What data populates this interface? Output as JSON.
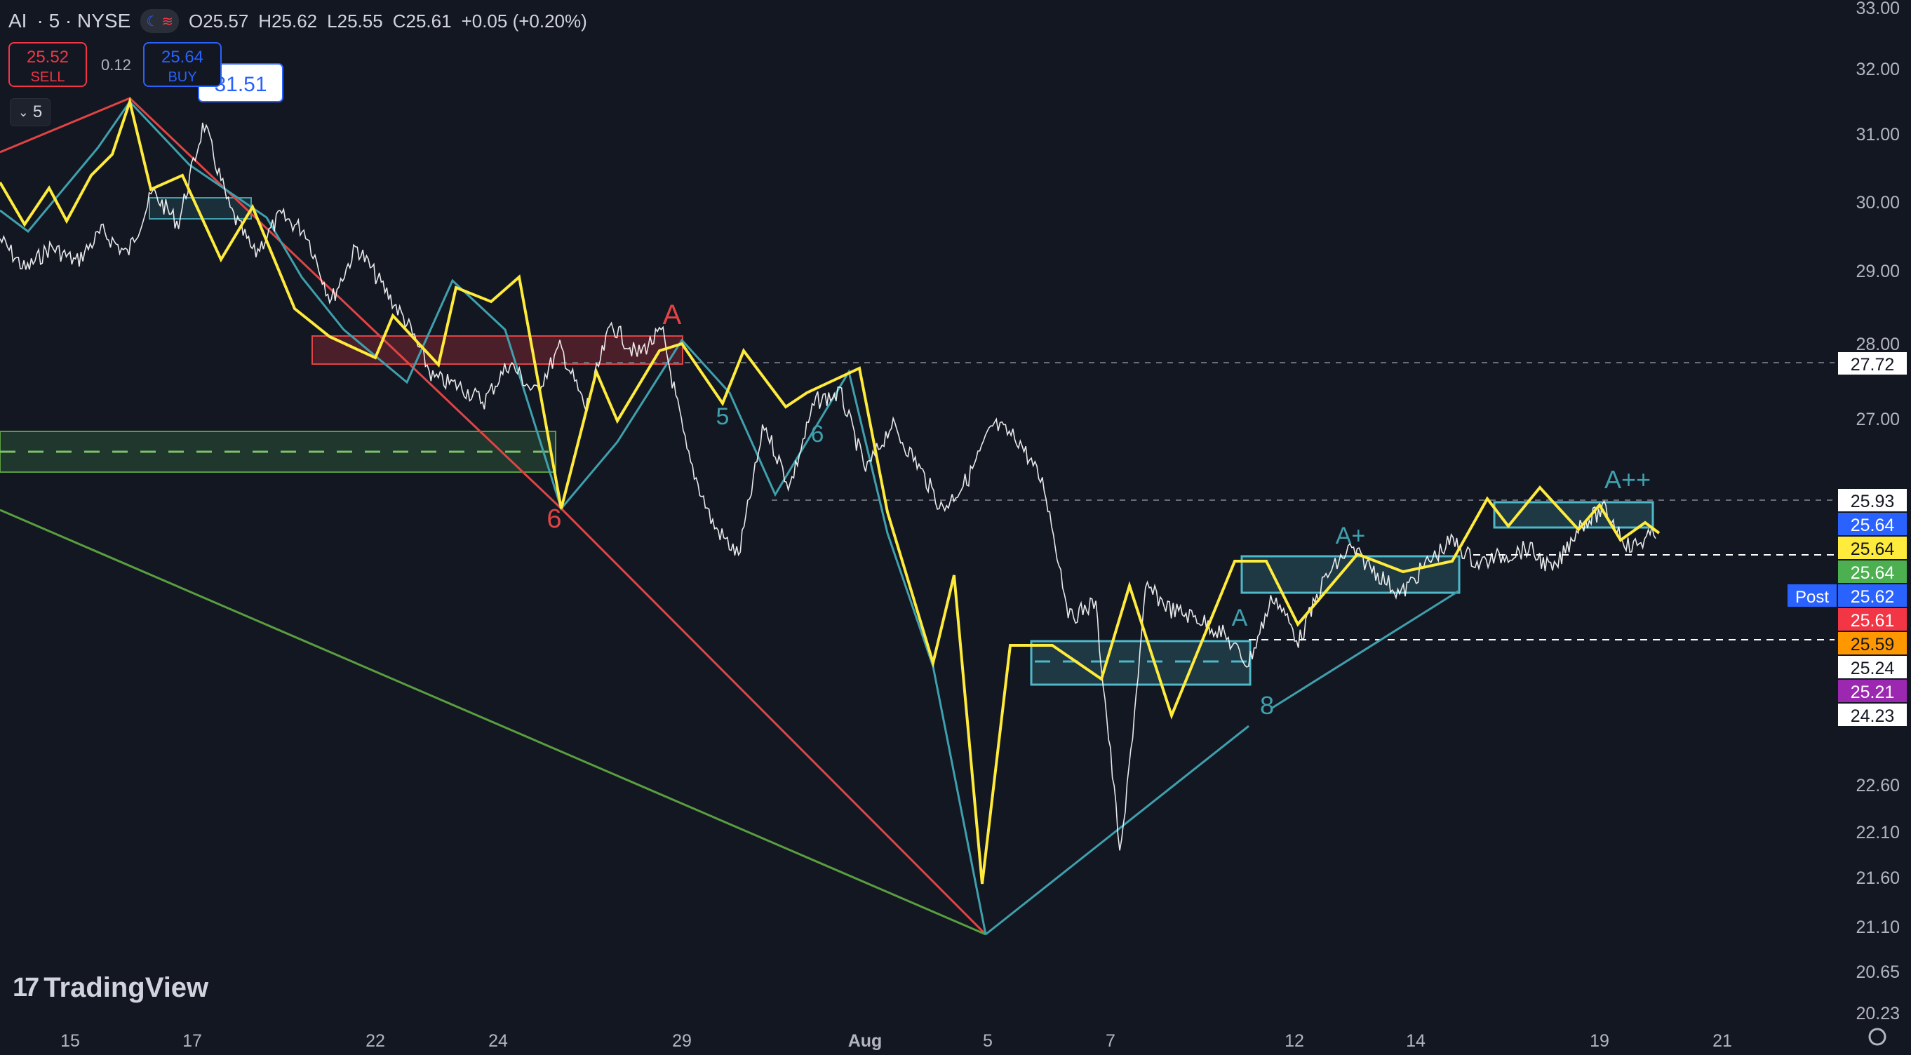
{
  "header": {
    "symbol": "AI",
    "interval": "· 5 · NYSE",
    "ohlc": {
      "open_label": "O",
      "open": "25.57",
      "high_label": "H",
      "high": "25.62",
      "low_label": "L",
      "low": "25.55",
      "close_label": "C",
      "close": "25.61",
      "change": "+0.05 (+0.20%)"
    }
  },
  "trade": {
    "sell_price": "25.52",
    "sell_label": "SELL",
    "spread": "0.12",
    "buy_price": "25.64",
    "buy_label": "BUY"
  },
  "interval_button": {
    "label": "5"
  },
  "logo": {
    "text": "TradingView"
  },
  "colors": {
    "background": "#131722",
    "yellow": "#ffeb3b",
    "teal": "#3fa0ad",
    "red": "#e04444",
    "green": "#5a9e3f",
    "text": "#b2b5be"
  },
  "chart_data": {
    "type": "line",
    "title": "",
    "xlabel": "",
    "ylabel": "",
    "ylim": [
      20.0,
      33.0
    ],
    "grid": false,
    "y_ticks": [
      "33.00",
      "32.00",
      "31.00",
      "30.00",
      "29.00",
      "28.00",
      "27.00",
      "22.60",
      "22.10",
      "21.60",
      "21.10",
      "20.65",
      "20.23"
    ],
    "x_ticks": [
      "15",
      "17",
      "22",
      "24",
      "29",
      "Aug",
      "5",
      "7",
      "12",
      "14",
      "19",
      "21"
    ],
    "price_tags": [
      {
        "text": "27.72",
        "bg": "#ffffff",
        "fg": "#131722"
      },
      {
        "text": "25.93",
        "bg": "#ffffff",
        "fg": "#131722"
      },
      {
        "text": "25.64",
        "bg": "#2962ff",
        "fg": "#ffffff"
      },
      {
        "text": "25.64",
        "bg": "#ffeb3b",
        "fg": "#131722"
      },
      {
        "text": "25.64",
        "bg": "#4caf50",
        "fg": "#ffffff"
      },
      {
        "text": "25.62",
        "bg": "#2962ff",
        "fg": "#ffffff",
        "label": "Post"
      },
      {
        "text": "25.61",
        "bg": "#f23645",
        "fg": "#ffffff"
      },
      {
        "text": "25.59",
        "bg": "#ff9800",
        "fg": "#131722"
      },
      {
        "text": "25.24",
        "bg": "#ffffff",
        "fg": "#131722"
      },
      {
        "text": "25.21",
        "bg": "#9c27b0",
        "fg": "#ffffff"
      },
      {
        "text": "24.23",
        "bg": "#ffffff",
        "fg": "#131722"
      }
    ],
    "annotations": [
      {
        "text": "A",
        "color": "#e04444"
      },
      {
        "text": "A",
        "color": "#3fa0ad"
      },
      {
        "text": "A+",
        "color": "#3fa0ad"
      },
      {
        "text": "A++",
        "color": "#3fa0ad"
      },
      {
        "text": "6",
        "color": "#e04444"
      },
      {
        "text": "8",
        "color": "#3fa0ad"
      },
      {
        "text": "5",
        "color": "#3fa0ad"
      },
      {
        "text": "6",
        "color": "#3fa0ad"
      },
      {
        "text": "31.51",
        "color": "#2962ff"
      }
    ],
    "series": [
      {
        "values": [
          30.0,
          29.6,
          29.9,
          29.7,
          30.1,
          29.8,
          30.6,
          30.2,
          31.5,
          30.4,
          29.8,
          30.3,
          30.1,
          29.2,
          29.9,
          29.4,
          28.9,
          28.2,
          28.1,
          27.9,
          28.4,
          28.0,
          28.6,
          27.8,
          28.9,
          28.5,
          28.8,
          27.2,
          26.3,
          25.9,
          27.6,
          26.8,
          27.9,
          28.0,
          27.0,
          27.6,
          27.1,
          26.5,
          26.9,
          27.6,
          27.4,
          26.8,
          25.1,
          25.3,
          22.0,
          25.5,
          25.2,
          25.1,
          24.9,
          24.5,
          25.4,
          24.8,
          25.6,
          26.0,
          25.7,
          25.4,
          25.8,
          26.1,
          25.8,
          25.9,
          26.0,
          25.7,
          26.3,
          26.5,
          26.0,
          26.2
        ]
      }
    ]
  }
}
